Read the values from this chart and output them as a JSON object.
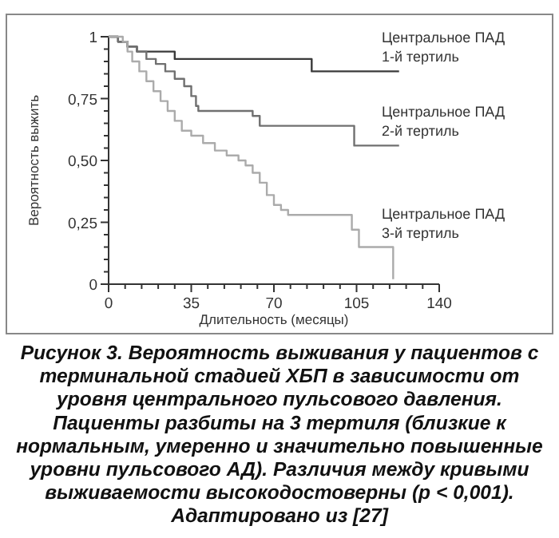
{
  "chart_data": {
    "type": "step",
    "title": "Рисунок 3. Вероятность выживания у пациентов с терминальной стадией ХБП в зависимости от уровня центрального пульсового давления. Пациенты разбиты на 3 тертиля (близкие к нормальным, умеренно и значительно повышенные уровни пульсового АД). Различия между кривыми выживаемости высокодостоверны (p < 0,001). Адаптировано из [27]",
    "xlabel": "Длительность (месяцы)",
    "ylabel": "Вероятность выжить",
    "xlim": [
      0,
      140
    ],
    "ylim": [
      0,
      1
    ],
    "xticks": [
      0,
      {
        "value": 7,
        "label": null
      },
      {
        "value": 14,
        "label": null
      },
      {
        "value": 21,
        "label": null
      },
      {
        "value": 28,
        "label": null
      },
      35,
      {
        "value": 42,
        "label": null
      },
      {
        "value": 49,
        "label": null
      },
      {
        "value": 56,
        "label": null
      },
      {
        "value": 63,
        "label": null
      },
      70,
      {
        "value": 77,
        "label": null
      },
      {
        "value": 84,
        "label": null
      },
      {
        "value": 91,
        "label": null
      },
      {
        "value": 98,
        "label": null
      },
      105,
      {
        "value": 112,
        "label": null
      },
      {
        "value": 119,
        "label": null
      },
      {
        "value": 126,
        "label": null
      },
      {
        "value": 133,
        "label": null
      },
      140
    ],
    "yticks": [
      {
        "value": 0,
        "label": "0"
      },
      {
        "value": 0.05,
        "label": null
      },
      {
        "value": 0.1,
        "label": null
      },
      {
        "value": 0.15,
        "label": null
      },
      {
        "value": 0.2,
        "label": null
      },
      {
        "value": 0.25,
        "label": "0,25"
      },
      {
        "value": 0.3,
        "label": null
      },
      {
        "value": 0.35,
        "label": null
      },
      {
        "value": 0.4,
        "label": null
      },
      {
        "value": 0.45,
        "label": null
      },
      {
        "value": 0.5,
        "label": "0,50"
      },
      {
        "value": 0.55,
        "label": null
      },
      {
        "value": 0.6,
        "label": null
      },
      {
        "value": 0.65,
        "label": null
      },
      {
        "value": 0.7,
        "label": null
      },
      {
        "value": 0.75,
        "label": "0,75"
      },
      {
        "value": 0.8,
        "label": null
      },
      {
        "value": 0.85,
        "label": null
      },
      {
        "value": 0.9,
        "label": null
      },
      {
        "value": 0.95,
        "label": null
      },
      {
        "value": 1,
        "label": "1"
      }
    ],
    "grid": false,
    "series": [
      {
        "name": "Центральное ПАД\n1-й тертиль",
        "color": "#3a3a3a",
        "x": [
          0,
          4,
          8,
          12,
          28,
          86,
          123
        ],
        "values": [
          1,
          0.98,
          0.96,
          0.94,
          0.91,
          0.86,
          0.86
        ]
      },
      {
        "name": "Центральное ПАД\n2-й тертиль",
        "color": "#707070",
        "x": [
          0,
          4,
          8,
          12,
          16,
          20,
          24,
          28,
          32,
          35,
          37,
          38,
          61,
          64,
          104,
          123
        ],
        "values": [
          1,
          0.98,
          0.96,
          0.94,
          0.91,
          0.89,
          0.86,
          0.83,
          0.8,
          0.76,
          0.72,
          0.7,
          0.68,
          0.64,
          0.56,
          0.56
        ]
      },
      {
        "name": "Центральное ПАД\n3-й тертиль",
        "color": "#ababab",
        "x": [
          0,
          6,
          8,
          10,
          13,
          16,
          19,
          22,
          25,
          28,
          31,
          35,
          40,
          45,
          50,
          55,
          58,
          61,
          64,
          67,
          70,
          73,
          76,
          103,
          106,
          120,
          120.5
        ],
        "values": [
          1,
          0.98,
          0.94,
          0.9,
          0.86,
          0.82,
          0.78,
          0.74,
          0.7,
          0.66,
          0.62,
          0.6,
          0.57,
          0.54,
          0.52,
          0.5,
          0.48,
          0.45,
          0.41,
          0.36,
          0.32,
          0.3,
          0.28,
          0.22,
          0.15,
          0.15,
          0.02
        ]
      }
    ]
  }
}
